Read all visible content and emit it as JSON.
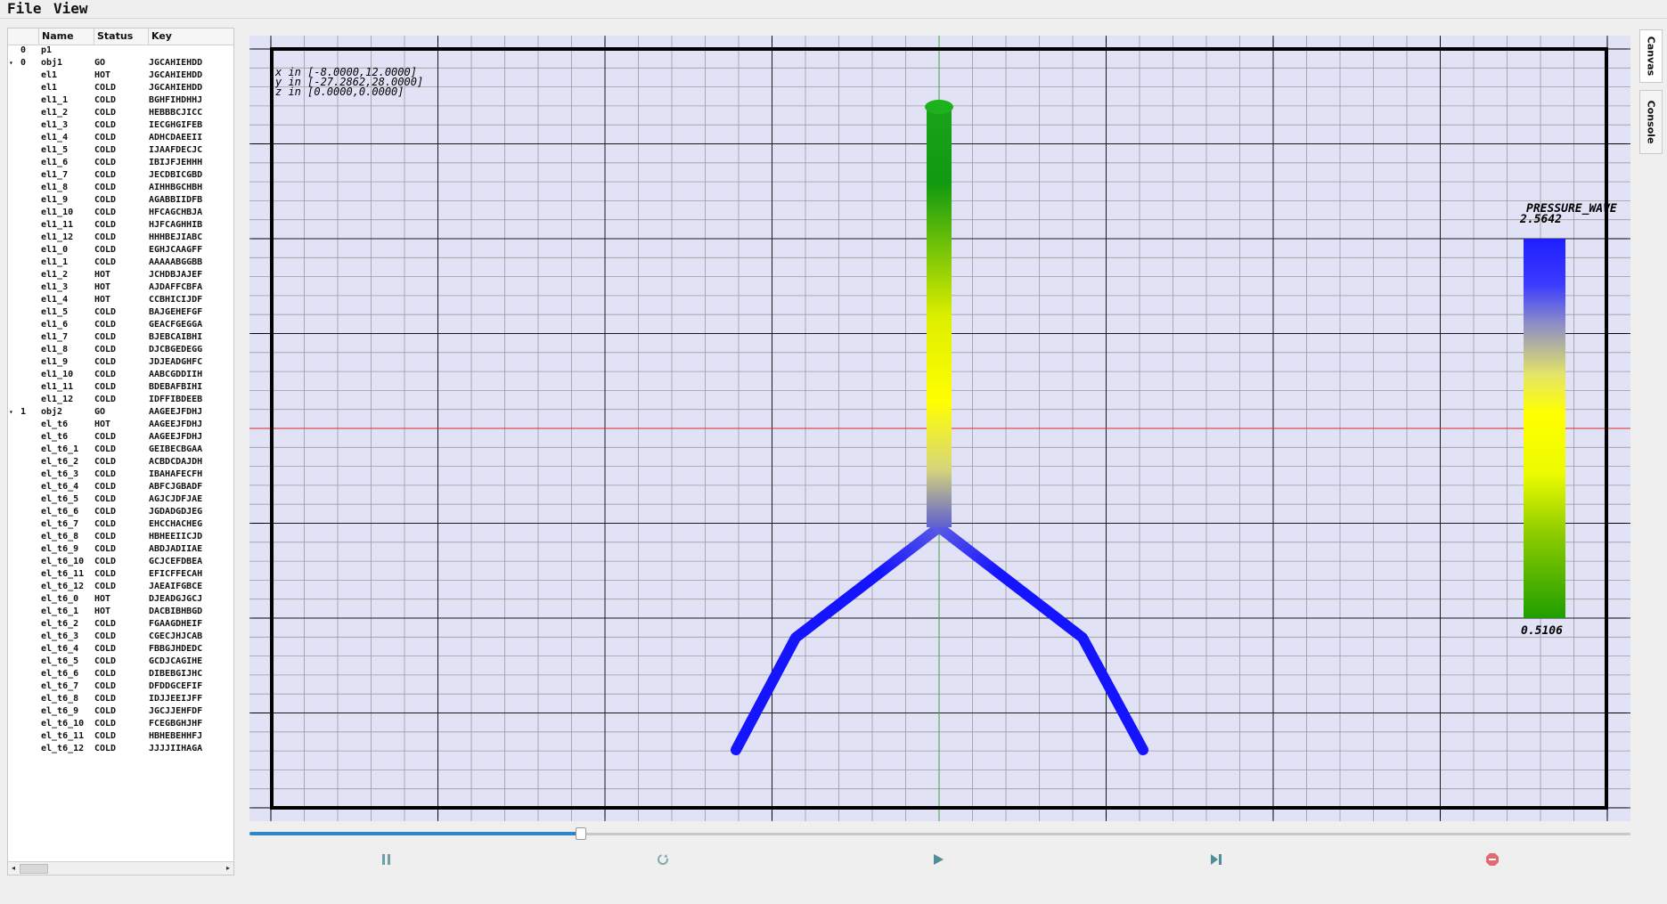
{
  "menu": {
    "file": "File",
    "view": "View"
  },
  "tree": {
    "columns": [
      "",
      "Name",
      "Status",
      "Key"
    ],
    "rows": [
      {
        "arrow": "",
        "id": "0",
        "name": "p1",
        "status": "",
        "key": ""
      },
      {
        "arrow": "▾",
        "id": "0",
        "name": "obj1",
        "status": "GO",
        "key": "JGCAHIEHDD"
      },
      {
        "arrow": "",
        "id": "",
        "name": "el1",
        "status": "HOT",
        "key": "JGCAHIEHDD"
      },
      {
        "arrow": "",
        "id": "",
        "name": "el1",
        "status": "COLD",
        "key": "JGCAHIEHDD"
      },
      {
        "arrow": "",
        "id": "",
        "name": "el1_1",
        "status": "COLD",
        "key": "BGHFIHDHHJ"
      },
      {
        "arrow": "",
        "id": "",
        "name": "el1_2",
        "status": "COLD",
        "key": "HEBBBCJICC"
      },
      {
        "arrow": "",
        "id": "",
        "name": "el1_3",
        "status": "COLD",
        "key": "IECGHGIFEB"
      },
      {
        "arrow": "",
        "id": "",
        "name": "el1_4",
        "status": "COLD",
        "key": "ADHCDAEEII"
      },
      {
        "arrow": "",
        "id": "",
        "name": "el1_5",
        "status": "COLD",
        "key": "IJAAFDECJC"
      },
      {
        "arrow": "",
        "id": "",
        "name": "el1_6",
        "status": "COLD",
        "key": "IBIJFJEHHH"
      },
      {
        "arrow": "",
        "id": "",
        "name": "el1_7",
        "status": "COLD",
        "key": "JECDBICGBD"
      },
      {
        "arrow": "",
        "id": "",
        "name": "el1_8",
        "status": "COLD",
        "key": "AIHHBGCHBH"
      },
      {
        "arrow": "",
        "id": "",
        "name": "el1_9",
        "status": "COLD",
        "key": "AGABBIIDFB"
      },
      {
        "arrow": "",
        "id": "",
        "name": "el1_10",
        "status": "COLD",
        "key": "HFCAGCHBJA"
      },
      {
        "arrow": "",
        "id": "",
        "name": "el1_11",
        "status": "COLD",
        "key": "HJFCAGHHIB"
      },
      {
        "arrow": "",
        "id": "",
        "name": "el1_12",
        "status": "COLD",
        "key": "HHHBEJIABC"
      },
      {
        "arrow": "",
        "id": "",
        "name": "el1_0",
        "status": "COLD",
        "key": "EGHJCAAGFF"
      },
      {
        "arrow": "",
        "id": "",
        "name": "el1_1",
        "status": "COLD",
        "key": "AAAAABGGBB"
      },
      {
        "arrow": "",
        "id": "",
        "name": "el1_2",
        "status": "HOT",
        "key": "JCHDBJAJEF"
      },
      {
        "arrow": "",
        "id": "",
        "name": "el1_3",
        "status": "HOT",
        "key": "AJDAFFCBFA"
      },
      {
        "arrow": "",
        "id": "",
        "name": "el1_4",
        "status": "HOT",
        "key": "CCBHICIJDF"
      },
      {
        "arrow": "",
        "id": "",
        "name": "el1_5",
        "status": "COLD",
        "key": "BAJGEHEFGF"
      },
      {
        "arrow": "",
        "id": "",
        "name": "el1_6",
        "status": "COLD",
        "key": "GEACFGEGGA"
      },
      {
        "arrow": "",
        "id": "",
        "name": "el1_7",
        "status": "COLD",
        "key": "BJEBCAIBHI"
      },
      {
        "arrow": "",
        "id": "",
        "name": "el1_8",
        "status": "COLD",
        "key": "DJCBGEDEGG"
      },
      {
        "arrow": "",
        "id": "",
        "name": "el1_9",
        "status": "COLD",
        "key": "JDJEADGHFC"
      },
      {
        "arrow": "",
        "id": "",
        "name": "el1_10",
        "status": "COLD",
        "key": "AABCGDDIIH"
      },
      {
        "arrow": "",
        "id": "",
        "name": "el1_11",
        "status": "COLD",
        "key": "BDEBAFBIHI"
      },
      {
        "arrow": "",
        "id": "",
        "name": "el1_12",
        "status": "COLD",
        "key": "IDFFIBDEEB"
      },
      {
        "arrow": "▾",
        "id": "1",
        "name": "obj2",
        "status": "GO",
        "key": "AAGEEJFDHJ"
      },
      {
        "arrow": "",
        "id": "",
        "name": "el_t6",
        "status": "HOT",
        "key": "AAGEEJFDHJ"
      },
      {
        "arrow": "",
        "id": "",
        "name": "el_t6",
        "status": "COLD",
        "key": "AAGEEJFDHJ"
      },
      {
        "arrow": "",
        "id": "",
        "name": "el_t6_1",
        "status": "COLD",
        "key": "GEIBECBGAA"
      },
      {
        "arrow": "",
        "id": "",
        "name": "el_t6_2",
        "status": "COLD",
        "key": "ACBDCDAJDH"
      },
      {
        "arrow": "",
        "id": "",
        "name": "el_t6_3",
        "status": "COLD",
        "key": "IBAHAFECFH"
      },
      {
        "arrow": "",
        "id": "",
        "name": "el_t6_4",
        "status": "COLD",
        "key": "ABFCJGBADF"
      },
      {
        "arrow": "",
        "id": "",
        "name": "el_t6_5",
        "status": "COLD",
        "key": "AGJCJDFJAE"
      },
      {
        "arrow": "",
        "id": "",
        "name": "el_t6_6",
        "status": "COLD",
        "key": "JGDADGDJEG"
      },
      {
        "arrow": "",
        "id": "",
        "name": "el_t6_7",
        "status": "COLD",
        "key": "EHCCHACHEG"
      },
      {
        "arrow": "",
        "id": "",
        "name": "el_t6_8",
        "status": "COLD",
        "key": "HBHEEIICJD"
      },
      {
        "arrow": "",
        "id": "",
        "name": "el_t6_9",
        "status": "COLD",
        "key": "ABDJADIIAE"
      },
      {
        "arrow": "",
        "id": "",
        "name": "el_t6_10",
        "status": "COLD",
        "key": "GCJCEFDBEA"
      },
      {
        "arrow": "",
        "id": "",
        "name": "el_t6_11",
        "status": "COLD",
        "key": "EFICFFECAH"
      },
      {
        "arrow": "",
        "id": "",
        "name": "el_t6_12",
        "status": "COLD",
        "key": "JAEAIFGBCE"
      },
      {
        "arrow": "",
        "id": "",
        "name": "el_t6_0",
        "status": "HOT",
        "key": "DJEADGJGCJ"
      },
      {
        "arrow": "",
        "id": "",
        "name": "el_t6_1",
        "status": "HOT",
        "key": "DACBIBHBGD"
      },
      {
        "arrow": "",
        "id": "",
        "name": "el_t6_2",
        "status": "COLD",
        "key": "FGAAGDHEIF"
      },
      {
        "arrow": "",
        "id": "",
        "name": "el_t6_3",
        "status": "COLD",
        "key": "CGECJHJCAB"
      },
      {
        "arrow": "",
        "id": "",
        "name": "el_t6_4",
        "status": "COLD",
        "key": "FBBGJHDEDC"
      },
      {
        "arrow": "",
        "id": "",
        "name": "el_t6_5",
        "status": "COLD",
        "key": "GCDJCAGIHE"
      },
      {
        "arrow": "",
        "id": "",
        "name": "el_t6_6",
        "status": "COLD",
        "key": "DIBEBGIJHC"
      },
      {
        "arrow": "",
        "id": "",
        "name": "el_t6_7",
        "status": "COLD",
        "key": "DFDDGCEFIF"
      },
      {
        "arrow": "",
        "id": "",
        "name": "el_t6_8",
        "status": "COLD",
        "key": "IDJJEEIJFF"
      },
      {
        "arrow": "",
        "id": "",
        "name": "el_t6_9",
        "status": "COLD",
        "key": "JGCJJEHFDF"
      },
      {
        "arrow": "",
        "id": "",
        "name": "el_t6_10",
        "status": "COLD",
        "key": "FCEGBGHJHF"
      },
      {
        "arrow": "",
        "id": "",
        "name": "el_t6_11",
        "status": "COLD",
        "key": "HBHEBEHHFJ"
      },
      {
        "arrow": "",
        "id": "",
        "name": "el_t6_12",
        "status": "COLD",
        "key": "JJJJIIHAGA"
      }
    ]
  },
  "canvas": {
    "coords": [
      "x in [-8.0000,12.0000]",
      "y in [-27.2862,28.0000]",
      "z in [0.0000,0.0000]"
    ],
    "colorbar": {
      "title": "PRESSURE_WAVE",
      "max": "2.5642",
      "min": "0.5106",
      "colors": [
        "#1f1fff",
        "#ffff00",
        "#1f9e00"
      ]
    },
    "colors": {
      "background": "#e2e2f7",
      "grid_minor": "#9c9c9c",
      "grid_major": "#1a1a1a",
      "frame": "#000000",
      "axis_h": "#d42a2a",
      "axis_v": "#3fa63f",
      "stem_top": "#1aa31a",
      "stem_yellow": "#ffff00",
      "branch": "#1414ff"
    }
  },
  "timeline": {
    "progress": 0.24
  },
  "controls": [
    "pause-icon",
    "reset-icon",
    "play-icon",
    "step-forward-icon",
    "stop-icon"
  ],
  "tabs": {
    "canvas": "Canvas",
    "console": "Console"
  }
}
